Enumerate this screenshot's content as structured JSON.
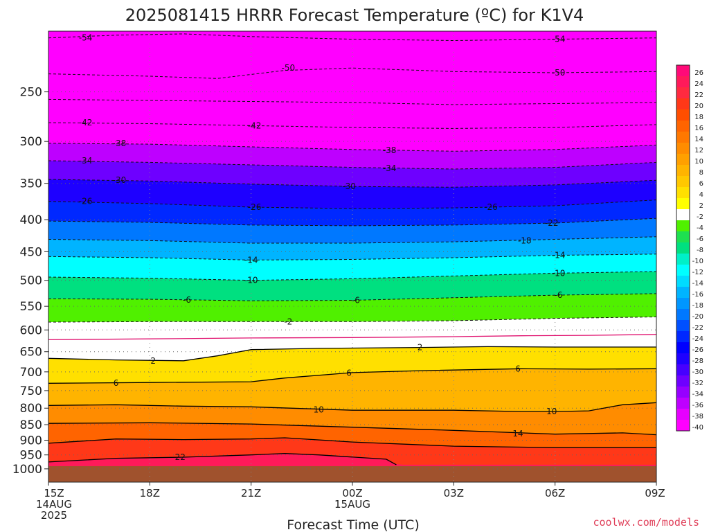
{
  "chart_data": {
    "type": "heatmap",
    "title": "2025081415 HRRR Forecast Temperature (ºC) for K1V4",
    "xlabel": "Forecast Time (UTC)",
    "ylabel": "",
    "y_scale": "log",
    "y_inverted": true,
    "x_hours": [
      0,
      3,
      6,
      9,
      12,
      15,
      18
    ],
    "x_tick_labels": [
      {
        "hour": 0,
        "lines": [
          "15Z",
          "14AUG",
          "2025"
        ]
      },
      {
        "hour": 3,
        "lines": [
          "18Z"
        ]
      },
      {
        "hour": 6,
        "lines": [
          "21Z"
        ]
      },
      {
        "hour": 9,
        "lines": [
          "00Z",
          "15AUG"
        ]
      },
      {
        "hour": 12,
        "lines": [
          "03Z"
        ]
      },
      {
        "hour": 15,
        "lines": [
          "06Z"
        ]
      },
      {
        "hour": 18,
        "lines": [
          "09Z"
        ]
      }
    ],
    "xlim": [
      0,
      18
    ],
    "ylim": [
      1050,
      200
    ],
    "y_ticks": [
      250,
      300,
      350,
      400,
      450,
      500,
      550,
      600,
      650,
      700,
      750,
      800,
      850,
      900,
      950,
      1000
    ],
    "y_tick_labels": [
      "250",
      "300",
      "350",
      "400",
      "450",
      "500",
      "550",
      "600",
      "650",
      "700",
      "750",
      "800",
      "850",
      "900",
      "950",
      "1000"
    ],
    "colorbar": {
      "levels": [
        "26",
        "24",
        "22",
        "20",
        "18",
        "16",
        "14",
        "12",
        "10",
        "8",
        "6",
        "4",
        "2",
        "-2",
        "-4",
        "-6",
        "-8",
        "-10",
        "-12",
        "-14",
        "-16",
        "-18",
        "-20",
        "-22",
        "-24",
        "-26",
        "-28",
        "-30",
        "-32",
        "-34",
        "-36",
        "-38",
        "-40"
      ],
      "colors": [
        "#ff0a78",
        "#ff1a5a",
        "#ff2a40",
        "#ff3818",
        "#ff4e00",
        "#ff6400",
        "#ff7800",
        "#ff8c00",
        "#ffa000",
        "#ffb400",
        "#ffc800",
        "#ffe000",
        "#ffff00",
        "#ffffff",
        "#50f000",
        "#1ee050",
        "#00e080",
        "#00f0c8",
        "#00ffff",
        "#00dcff",
        "#00b4ff",
        "#0096ff",
        "#0078ff",
        "#0050ff",
        "#0028ff",
        "#0000ff",
        "#1e00ff",
        "#4600ff",
        "#6e00ff",
        "#9600ff",
        "#be00ff",
        "#e600ff",
        "#ff00ff"
      ]
    },
    "contours": [
      {
        "value": -54,
        "label": "-54",
        "style": "dashed",
        "points": [
          [
            0,
            205
          ],
          [
            2,
            203
          ],
          [
            4,
            202
          ],
          [
            6,
            204
          ],
          [
            9,
            206
          ],
          [
            12,
            207
          ],
          [
            15,
            206
          ],
          [
            18,
            205
          ]
        ]
      },
      {
        "value": -50,
        "label": "-50",
        "style": "dashed",
        "points": [
          [
            0,
            234
          ],
          [
            3,
            236
          ],
          [
            5,
            238
          ],
          [
            7,
            231
          ],
          [
            9,
            229
          ],
          [
            12,
            232
          ],
          [
            15,
            233
          ],
          [
            18,
            232
          ]
        ]
      },
      {
        "value": -46,
        "label": "",
        "style": "dashed",
        "points": [
          [
            0,
            257
          ],
          [
            3,
            258
          ],
          [
            6,
            259
          ],
          [
            9,
            260
          ],
          [
            12,
            262
          ],
          [
            15,
            261
          ],
          [
            18,
            260
          ]
        ]
      },
      {
        "value": -42,
        "label": "-42",
        "style": "dashed",
        "points": [
          [
            0,
            280
          ],
          [
            3,
            281
          ],
          [
            6,
            283
          ],
          [
            9,
            285
          ],
          [
            12,
            286
          ],
          [
            15,
            285
          ],
          [
            18,
            282
          ]
        ]
      },
      {
        "value": -38,
        "label": "-38",
        "style": "dashed",
        "points": [
          [
            0,
            302
          ],
          [
            3,
            303
          ],
          [
            6,
            306
          ],
          [
            9,
            309
          ],
          [
            12,
            311
          ],
          [
            15,
            309
          ],
          [
            18,
            304
          ]
        ]
      },
      {
        "value": -34,
        "label": "-34",
        "style": "dashed",
        "points": [
          [
            0,
            322
          ],
          [
            3,
            324
          ],
          [
            6,
            327
          ],
          [
            9,
            330
          ],
          [
            12,
            332
          ],
          [
            15,
            330
          ],
          [
            18,
            324
          ]
        ]
      },
      {
        "value": -30,
        "label": "-30",
        "style": "dashed",
        "points": [
          [
            0,
            345
          ],
          [
            3,
            347
          ],
          [
            6,
            351
          ],
          [
            9,
            354
          ],
          [
            12,
            355
          ],
          [
            15,
            352
          ],
          [
            18,
            346
          ]
        ]
      },
      {
        "value": -26,
        "label": "-26",
        "style": "dashed",
        "points": [
          [
            0,
            374
          ],
          [
            3,
            377
          ],
          [
            6,
            382
          ],
          [
            9,
            384
          ],
          [
            12,
            383
          ],
          [
            15,
            380
          ],
          [
            18,
            372
          ]
        ]
      },
      {
        "value": -22,
        "label": "-22",
        "style": "dashed",
        "points": [
          [
            0,
            402
          ],
          [
            3,
            404
          ],
          [
            6,
            408
          ],
          [
            9,
            409
          ],
          [
            12,
            408
          ],
          [
            15,
            405
          ],
          [
            18,
            398
          ]
        ]
      },
      {
        "value": -18,
        "label": "-18",
        "style": "dashed",
        "points": [
          [
            0,
            430
          ],
          [
            3,
            432
          ],
          [
            6,
            436
          ],
          [
            9,
            436
          ],
          [
            12,
            434
          ],
          [
            15,
            430
          ],
          [
            18,
            426
          ]
        ]
      },
      {
        "value": -14,
        "label": "-14",
        "style": "dashed",
        "points": [
          [
            0,
            458
          ],
          [
            3,
            460
          ],
          [
            6,
            464
          ],
          [
            9,
            463
          ],
          [
            12,
            460
          ],
          [
            15,
            456
          ],
          [
            18,
            454
          ]
        ]
      },
      {
        "value": -10,
        "label": "-10",
        "style": "dashed",
        "points": [
          [
            0,
            494
          ],
          [
            3,
            496
          ],
          [
            6,
            500
          ],
          [
            9,
            497
          ],
          [
            12,
            492
          ],
          [
            15,
            487
          ],
          [
            18,
            484
          ]
        ]
      },
      {
        "value": -6,
        "label": "-6",
        "style": "dashed",
        "points": [
          [
            0,
            535
          ],
          [
            3,
            536
          ],
          [
            6,
            539
          ],
          [
            9,
            538
          ],
          [
            12,
            533
          ],
          [
            15,
            528
          ],
          [
            18,
            525
          ]
        ]
      },
      {
        "value": -2,
        "label": "-2",
        "style": "dashed",
        "points": [
          [
            0,
            583
          ],
          [
            3,
            582
          ],
          [
            6,
            582
          ],
          [
            9,
            582
          ],
          [
            12,
            580
          ],
          [
            15,
            575
          ],
          [
            18,
            572
          ]
        ]
      },
      {
        "value": 0,
        "label": "",
        "style": "magenta",
        "points": [
          [
            0,
            622
          ],
          [
            3,
            620
          ],
          [
            6,
            618
          ],
          [
            9,
            617
          ],
          [
            12,
            615
          ],
          [
            14,
            613
          ],
          [
            16,
            612
          ],
          [
            18,
            610
          ]
        ]
      },
      {
        "value": 2,
        "label": "2",
        "style": "solid",
        "points": [
          [
            0,
            666
          ],
          [
            2,
            670
          ],
          [
            4,
            672
          ],
          [
            5,
            660
          ],
          [
            6,
            645
          ],
          [
            8,
            642
          ],
          [
            11,
            640
          ],
          [
            13,
            638
          ],
          [
            15,
            639
          ],
          [
            18,
            639
          ]
        ]
      },
      {
        "value": 6,
        "label": "6",
        "style": "solid",
        "points": [
          [
            0,
            730
          ],
          [
            3,
            728
          ],
          [
            6,
            726
          ],
          [
            7,
            716
          ],
          [
            9,
            702
          ],
          [
            11,
            697
          ],
          [
            14,
            692
          ],
          [
            16,
            693
          ],
          [
            18,
            692
          ]
        ]
      },
      {
        "value": 10,
        "label": "10",
        "style": "solid",
        "points": [
          [
            0,
            792
          ],
          [
            2,
            790
          ],
          [
            4,
            794
          ],
          [
            6,
            796
          ],
          [
            9,
            806
          ],
          [
            12,
            806
          ],
          [
            14,
            810
          ],
          [
            15,
            810
          ],
          [
            16,
            808
          ],
          [
            17,
            790
          ],
          [
            18,
            784
          ]
        ]
      },
      {
        "value": 14,
        "label": "14",
        "style": "solid",
        "points": [
          [
            0,
            846
          ],
          [
            3,
            844
          ],
          [
            6,
            848
          ],
          [
            9,
            858
          ],
          [
            12,
            868
          ],
          [
            15,
            880
          ],
          [
            16,
            878
          ],
          [
            17,
            876
          ],
          [
            18,
            882
          ]
        ]
      },
      {
        "value": 18,
        "label": "",
        "style": "solid",
        "points": [
          [
            0,
            910
          ],
          [
            2,
            896
          ],
          [
            4,
            898
          ],
          [
            6,
            896
          ],
          [
            7,
            892
          ],
          [
            9,
            906
          ],
          [
            12,
            920
          ],
          [
            15,
            925
          ],
          [
            18,
            925
          ]
        ]
      },
      {
        "value": 22,
        "label": "22",
        "style": "solid",
        "points": [
          [
            0,
            975
          ],
          [
            2,
            962
          ],
          [
            4,
            958
          ],
          [
            6,
            950
          ],
          [
            7,
            945
          ],
          [
            8,
            950
          ],
          [
            10,
            965
          ],
          [
            10.3,
            985
          ]
        ]
      }
    ],
    "contour_labels": [
      {
        "text": "-54",
        "hour": 1.1,
        "p": 205
      },
      {
        "text": "-54",
        "hour": 15.1,
        "p": 206
      },
      {
        "text": "-50",
        "hour": 7.1,
        "p": 229
      },
      {
        "text": "-50",
        "hour": 15.1,
        "p": 233
      },
      {
        "text": "-42",
        "hour": 1.1,
        "p": 280
      },
      {
        "text": "-42",
        "hour": 6.1,
        "p": 283
      },
      {
        "text": "-38",
        "hour": 2.1,
        "p": 302
      },
      {
        "text": "-38",
        "hour": 10.1,
        "p": 310
      },
      {
        "text": "-34",
        "hour": 1.1,
        "p": 322
      },
      {
        "text": "-34",
        "hour": 10.1,
        "p": 331
      },
      {
        "text": "-30",
        "hour": 2.1,
        "p": 346
      },
      {
        "text": "-30",
        "hour": 8.9,
        "p": 354
      },
      {
        "text": "-26",
        "hour": 1.1,
        "p": 374
      },
      {
        "text": "-26",
        "hour": 6.1,
        "p": 382
      },
      {
        "text": "-26",
        "hour": 13.1,
        "p": 382
      },
      {
        "text": "-22",
        "hour": 14.9,
        "p": 405
      },
      {
        "text": "-18",
        "hour": 14.1,
        "p": 432
      },
      {
        "text": "-14",
        "hour": 6.0,
        "p": 464
      },
      {
        "text": "-14",
        "hour": 15.1,
        "p": 456
      },
      {
        "text": "-10",
        "hour": 6.0,
        "p": 500
      },
      {
        "text": "-10",
        "hour": 15.1,
        "p": 487
      },
      {
        "text": "-6",
        "hour": 4.1,
        "p": 537
      },
      {
        "text": "-6",
        "hour": 9.1,
        "p": 538
      },
      {
        "text": "-6",
        "hour": 15.1,
        "p": 528
      },
      {
        "text": "-2",
        "hour": 7.1,
        "p": 582
      },
      {
        "text": "2",
        "hour": 11.0,
        "p": 640
      },
      {
        "text": "2",
        "hour": 3.1,
        "p": 672
      },
      {
        "text": "6",
        "hour": 2.0,
        "p": 729
      },
      {
        "text": "6",
        "hour": 8.9,
        "p": 703
      },
      {
        "text": "6",
        "hour": 13.9,
        "p": 692
      },
      {
        "text": "10",
        "hour": 8.0,
        "p": 805
      },
      {
        "text": "10",
        "hour": 14.9,
        "p": 810
      },
      {
        "text": "14",
        "hour": 13.9,
        "p": 878
      },
      {
        "text": "22",
        "hour": 3.9,
        "p": 958
      }
    ],
    "ground_p": 990
  },
  "credit": "coolwx.com/models"
}
